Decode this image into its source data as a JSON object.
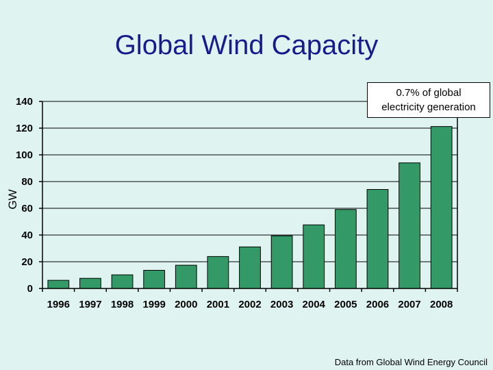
{
  "chart_data": {
    "type": "bar",
    "title": "Global Wind Capacity",
    "ylabel": "GW",
    "xlabel": "",
    "categories": [
      "1996",
      "1997",
      "1998",
      "1999",
      "2000",
      "2001",
      "2002",
      "2003",
      "2004",
      "2005",
      "2006",
      "2007",
      "2008"
    ],
    "values": [
      6.1,
      7.6,
      10.2,
      13.6,
      17.4,
      23.9,
      31.1,
      39.4,
      47.6,
      59.1,
      74.1,
      94.0,
      121.2
    ],
    "ylim": [
      0,
      140
    ],
    "yticks": [
      0,
      20,
      40,
      60,
      80,
      100,
      120,
      140
    ],
    "grid": true,
    "annotation": [
      "0.7% of global",
      "electricity generation"
    ],
    "source": "Data from Global Wind Energy Council",
    "colors": {
      "bar": "#339966",
      "background": "#dff4f1",
      "title": "#1a1a8c"
    }
  }
}
